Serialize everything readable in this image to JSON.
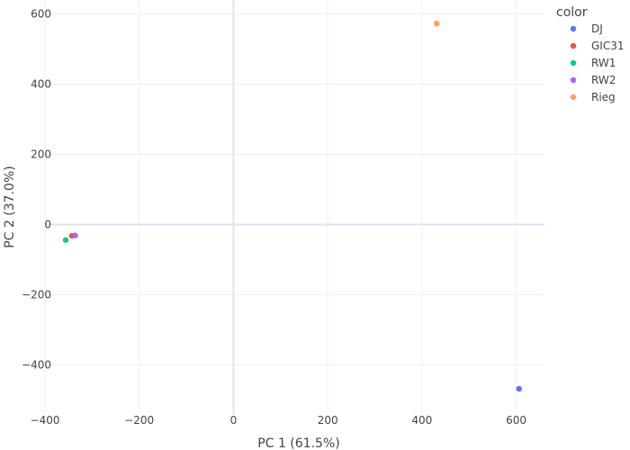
{
  "chart_data": {
    "type": "scatter",
    "xlabel": "PC 1 (61.5%)",
    "ylabel": "PC 2 (37.0%)",
    "xlim": [
      -400,
      660
    ],
    "ylim": [
      -540,
      640
    ],
    "xticks": [
      -400,
      -200,
      0,
      200,
      400,
      600
    ],
    "yticks": [
      -400,
      -200,
      0,
      200,
      400,
      600
    ],
    "xtick_labels": [
      "−400",
      "−200",
      "0",
      "200",
      "400",
      "600"
    ],
    "ytick_labels": [
      "−400",
      "−200",
      "0",
      "200",
      "400",
      "600"
    ],
    "grid": true,
    "legend_title": "color",
    "legend_placement": "right",
    "series": [
      {
        "name": "DJ",
        "color": "#636efa",
        "x": [
          606
        ],
        "y": [
          -468
        ]
      },
      {
        "name": "GIC31",
        "color": "#ef553b",
        "x": [
          -343
        ],
        "y": [
          -32
        ]
      },
      {
        "name": "RW1",
        "color": "#00cc96",
        "x": [
          -356
        ],
        "y": [
          -44
        ]
      },
      {
        "name": "RW2",
        "color": "#ab63fa",
        "x": [
          -336
        ],
        "y": [
          -31
        ]
      },
      {
        "name": "Rieg",
        "color": "#ffa15a",
        "x": [
          431
        ],
        "y": [
          573
        ]
      }
    ]
  }
}
